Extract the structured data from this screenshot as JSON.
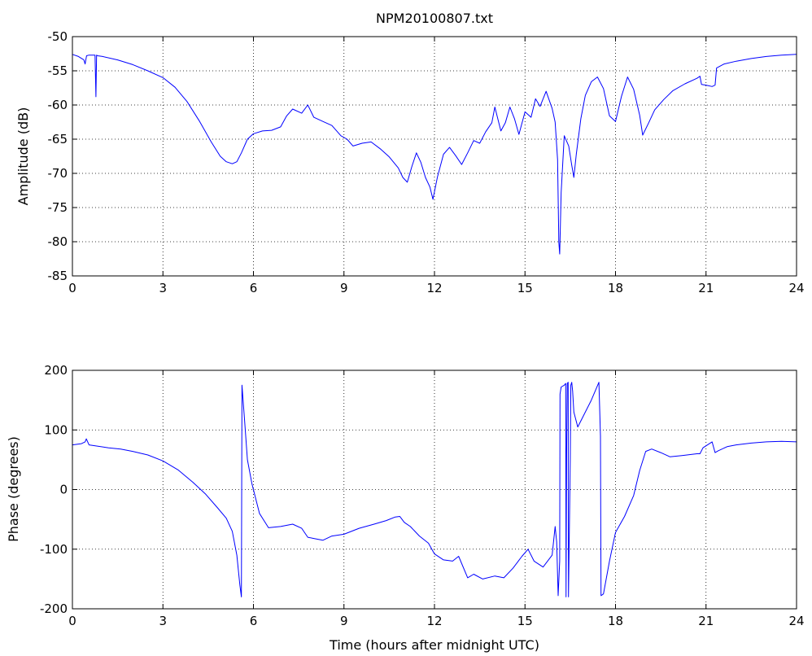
{
  "chart_data": [
    {
      "type": "line",
      "title": "NPM20100807.txt",
      "xlabel": "",
      "ylabel": "Amplitude (dB)",
      "xlim": [
        0,
        24
      ],
      "ylim": [
        -85,
        -50
      ],
      "xticks": [
        "0",
        "3",
        "6",
        "9",
        "12",
        "15",
        "18",
        "21",
        "24"
      ],
      "yticks": [
        "-85",
        "-80",
        "-75",
        "-70",
        "-65",
        "-60",
        "-55",
        "-50"
      ],
      "grid": true,
      "series": [
        {
          "color": "#0000ff",
          "x": [
            0,
            0.2,
            0.38,
            0.42,
            0.47,
            0.55,
            0.7,
            0.75,
            0.78,
            0.8,
            0.83,
            1.0,
            1.5,
            2.0,
            2.5,
            3.0,
            3.4,
            3.8,
            4.2,
            4.6,
            4.9,
            5.1,
            5.3,
            5.45,
            5.6,
            5.8,
            6.0,
            6.3,
            6.6,
            6.9,
            7.1,
            7.3,
            7.6,
            7.8,
            8.0,
            8.3,
            8.6,
            8.9,
            9.1,
            9.3,
            9.6,
            9.9,
            10.2,
            10.5,
            10.8,
            10.95,
            11.1,
            11.25,
            11.4,
            11.55,
            11.7,
            11.85,
            11.95,
            12.1,
            12.3,
            12.5,
            12.7,
            12.9,
            13.1,
            13.3,
            13.5,
            13.7,
            13.9,
            14.0,
            14.2,
            14.35,
            14.5,
            14.65,
            14.8,
            15.0,
            15.2,
            15.35,
            15.5,
            15.7,
            15.9,
            16.0,
            16.08,
            16.12,
            16.15,
            16.2,
            16.3,
            16.45,
            16.55,
            16.62,
            16.7,
            16.85,
            17.0,
            17.2,
            17.4,
            17.6,
            17.8,
            18.0,
            18.2,
            18.4,
            18.6,
            18.8,
            18.9,
            19.1,
            19.3,
            19.6,
            19.9,
            20.3,
            20.7,
            20.8,
            20.85,
            21.0,
            21.2,
            21.3,
            21.35,
            21.6,
            22.0,
            22.5,
            23.0,
            23.5,
            24.0
          ],
          "y": [
            -52.6,
            -52.9,
            -53.4,
            -54.0,
            -52.8,
            -52.7,
            -52.7,
            -52.7,
            -58.8,
            -52.7,
            -52.8,
            -52.9,
            -53.4,
            -54.1,
            -55.0,
            -56.0,
            -57.4,
            -59.5,
            -62.3,
            -65.4,
            -67.5,
            -68.3,
            -68.6,
            -68.3,
            -67.0,
            -65.0,
            -64.2,
            -63.8,
            -63.7,
            -63.2,
            -61.6,
            -60.6,
            -61.2,
            -60.0,
            -61.8,
            -62.4,
            -63.0,
            -64.5,
            -65.0,
            -66.0,
            -65.6,
            -65.4,
            -66.4,
            -67.6,
            -69.2,
            -70.6,
            -71.3,
            -69.0,
            -67.0,
            -68.4,
            -70.6,
            -72.0,
            -73.8,
            -70.5,
            -67.2,
            -66.2,
            -67.4,
            -68.7,
            -67.0,
            -65.2,
            -65.6,
            -63.9,
            -62.6,
            -60.3,
            -63.8,
            -62.6,
            -60.3,
            -62.0,
            -64.3,
            -61.0,
            -61.8,
            -59.1,
            -60.2,
            -58.0,
            -60.5,
            -62.5,
            -68.0,
            -80.0,
            -81.8,
            -72.8,
            -64.5,
            -66.0,
            -68.8,
            -70.6,
            -67.2,
            -62.0,
            -58.6,
            -56.6,
            -55.9,
            -57.6,
            -61.6,
            -62.4,
            -58.7,
            -55.9,
            -57.7,
            -61.5,
            -64.4,
            -62.6,
            -60.7,
            -59.2,
            -57.9,
            -56.9,
            -56.1,
            -55.8,
            -57.0,
            -57.1,
            -57.3,
            -57.1,
            -54.6,
            -54.0,
            -53.6,
            -53.2,
            -52.9,
            -52.7,
            -52.6
          ]
        }
      ]
    },
    {
      "type": "line",
      "title": "",
      "xlabel": "Time (hours after midnight UTC)",
      "ylabel": "Phase (degrees)",
      "xlim": [
        0,
        24
      ],
      "ylim": [
        -200,
        200
      ],
      "xticks": [
        "0",
        "3",
        "6",
        "9",
        "12",
        "15",
        "18",
        "21",
        "24"
      ],
      "yticks": [
        "-200",
        "-100",
        "0",
        "100",
        "200"
      ],
      "grid": true,
      "series": [
        {
          "color": "#0000ff",
          "x": [
            0,
            0.3,
            0.42,
            0.46,
            0.55,
            0.8,
            1.2,
            1.6,
            2.0,
            2.5,
            3.0,
            3.5,
            4.0,
            4.4,
            4.8,
            5.1,
            5.3,
            5.45,
            5.55,
            5.6,
            5.62,
            5.7,
            5.8,
            5.95,
            6.2,
            6.5,
            6.9,
            7.3,
            7.6,
            7.8,
            8.0,
            8.3,
            8.6,
            9.0,
            9.5,
            10.0,
            10.4,
            10.7,
            10.85,
            11.0,
            11.2,
            11.5,
            11.8,
            12.0,
            12.3,
            12.6,
            12.8,
            13.1,
            13.3,
            13.6,
            14.0,
            14.3,
            14.6,
            14.9,
            15.1,
            15.3,
            15.6,
            15.9,
            16.0,
            16.05,
            16.1,
            16.15,
            16.16,
            16.2,
            16.3,
            16.35,
            16.36,
            16.38,
            16.4,
            16.43,
            16.44,
            16.5,
            16.52,
            16.55,
            16.58,
            16.62,
            16.75,
            16.9,
            17.2,
            17.45,
            17.5,
            17.52,
            17.6,
            17.8,
            18.0,
            18.3,
            18.6,
            18.8,
            19.0,
            19.2,
            19.5,
            19.8,
            20.2,
            20.7,
            20.8,
            20.9,
            21.2,
            21.3,
            21.4,
            21.7,
            22.0,
            22.5,
            23.0,
            23.5,
            24.0
          ],
          "y": [
            75,
            77,
            80,
            85,
            75,
            73,
            70,
            68,
            64,
            58,
            48,
            33,
            12,
            -7,
            -30,
            -48,
            -70,
            -110,
            -160,
            -180,
            175,
            120,
            50,
            10,
            -40,
            -64,
            -62,
            -58,
            -65,
            -80,
            -82,
            -85,
            -78,
            -75,
            -65,
            -58,
            -52,
            -46,
            -45,
            -55,
            -62,
            -78,
            -90,
            -108,
            -118,
            -120,
            -112,
            -148,
            -142,
            -150,
            -145,
            -148,
            -132,
            -112,
            -100,
            -120,
            -130,
            -110,
            -62,
            -88,
            -178,
            -120,
            160,
            172,
            175,
            178,
            -180,
            60,
            178,
            180,
            -180,
            50,
            175,
            180,
            165,
            130,
            105,
            120,
            150,
            180,
            90,
            -178,
            -175,
            -120,
            -72,
            -45,
            -10,
            32,
            64,
            68,
            62,
            55,
            57,
            60,
            60,
            70,
            80,
            62,
            65,
            72,
            75,
            78,
            80,
            81,
            80
          ]
        }
      ]
    }
  ]
}
